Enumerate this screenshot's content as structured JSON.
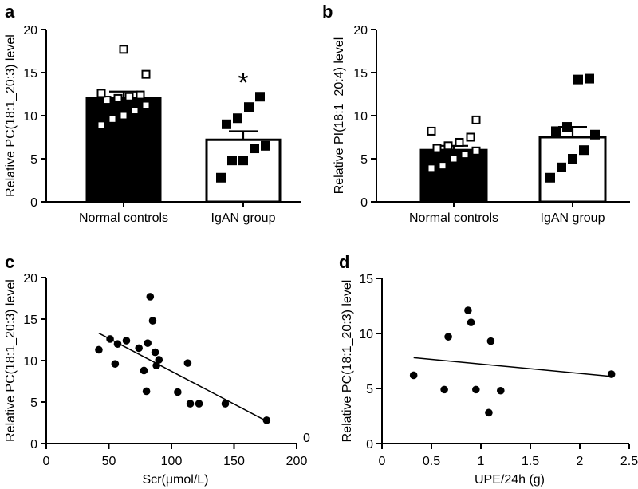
{
  "chart_data": [
    {
      "panel": "a",
      "type": "bar",
      "ylabel": "Relative PC(18:1_20:3) level",
      "ylim": [
        0,
        20
      ],
      "yticks": [
        0,
        5,
        10,
        15,
        20
      ],
      "categories": [
        "Normal controls",
        "IgAN group"
      ],
      "values": [
        12.0,
        7.2
      ],
      "errors": [
        0.8,
        1.0
      ],
      "fills": [
        "#000000",
        "#ffffff"
      ],
      "significance": [
        "",
        "*"
      ],
      "points": [
        [
          8.9,
          9.6,
          10.0,
          10.6,
          11.2,
          11.8,
          12.0,
          12.2,
          12.4,
          12.6,
          14.8,
          17.7
        ],
        [
          2.8,
          4.8,
          4.8,
          6.2,
          6.5,
          9.0,
          9.7,
          11.0,
          12.2
        ]
      ],
      "point_markers": [
        "open-square",
        "filled-square"
      ]
    },
    {
      "panel": "b",
      "type": "bar",
      "ylabel": "Relative PI(18:1_20:4) level",
      "ylim": [
        0,
        20
      ],
      "yticks": [
        0,
        5,
        10,
        15,
        20
      ],
      "categories": [
        "Normal controls",
        "IgAN group"
      ],
      "values": [
        6.0,
        7.5
      ],
      "errors": [
        0.5,
        1.2
      ],
      "fills": [
        "#000000",
        "#ffffff"
      ],
      "significance": [
        "",
        ""
      ],
      "points": [
        [
          3.9,
          4.2,
          5.0,
          5.5,
          5.9,
          6.2,
          6.5,
          6.9,
          7.5,
          8.2,
          9.5
        ],
        [
          2.8,
          4.0,
          5.0,
          6.0,
          7.8,
          8.2,
          8.7,
          14.2,
          14.3
        ]
      ],
      "point_markers": [
        "open-square",
        "filled-square"
      ]
    },
    {
      "panel": "c",
      "type": "scatter",
      "xlabel": "Scr(μmol/L)",
      "ylabel": "Relative PC(18:1_20:3) level",
      "xlim": [
        0,
        200
      ],
      "ylim": [
        0,
        20
      ],
      "xticks": [
        0,
        50,
        100,
        150,
        200
      ],
      "yticks": [
        0,
        5,
        10,
        15,
        20
      ],
      "corner_label": "0",
      "x": [
        42,
        51,
        55,
        57,
        64,
        74,
        78,
        80,
        81,
        83,
        85,
        87,
        88,
        90,
        105,
        113,
        115,
        122,
        143,
        176
      ],
      "y": [
        11.3,
        12.6,
        9.6,
        12.0,
        12.4,
        11.5,
        8.8,
        6.3,
        12.1,
        17.7,
        14.8,
        11.0,
        9.4,
        10.1,
        6.2,
        9.7,
        4.8,
        4.8,
        4.8,
        2.8
      ],
      "fit": {
        "x": [
          42,
          176
        ],
        "y": [
          13.3,
          2.7
        ]
      }
    },
    {
      "panel": "d",
      "type": "scatter",
      "xlabel": "UPE/24h (g)",
      "ylabel": "Relative PC(18:1_20:3) level",
      "xlim": [
        0,
        2.5
      ],
      "ylim": [
        0,
        15
      ],
      "xticks": [
        0,
        0.5,
        1,
        1.5,
        2,
        2.5
      ],
      "xtick_labels": [
        "0",
        "0.5",
        "1",
        "1.5",
        "2",
        "2.5"
      ],
      "yticks": [
        0,
        5,
        10,
        15
      ],
      "x": [
        0.32,
        0.63,
        0.67,
        0.87,
        0.9,
        0.95,
        1.08,
        1.1,
        1.2,
        2.32
      ],
      "y": [
        6.2,
        4.9,
        9.7,
        12.1,
        11.0,
        4.9,
        2.8,
        9.3,
        4.8,
        6.3
      ],
      "fit": {
        "x": [
          0.32,
          2.32
        ],
        "y": [
          7.8,
          6.1
        ]
      }
    }
  ]
}
